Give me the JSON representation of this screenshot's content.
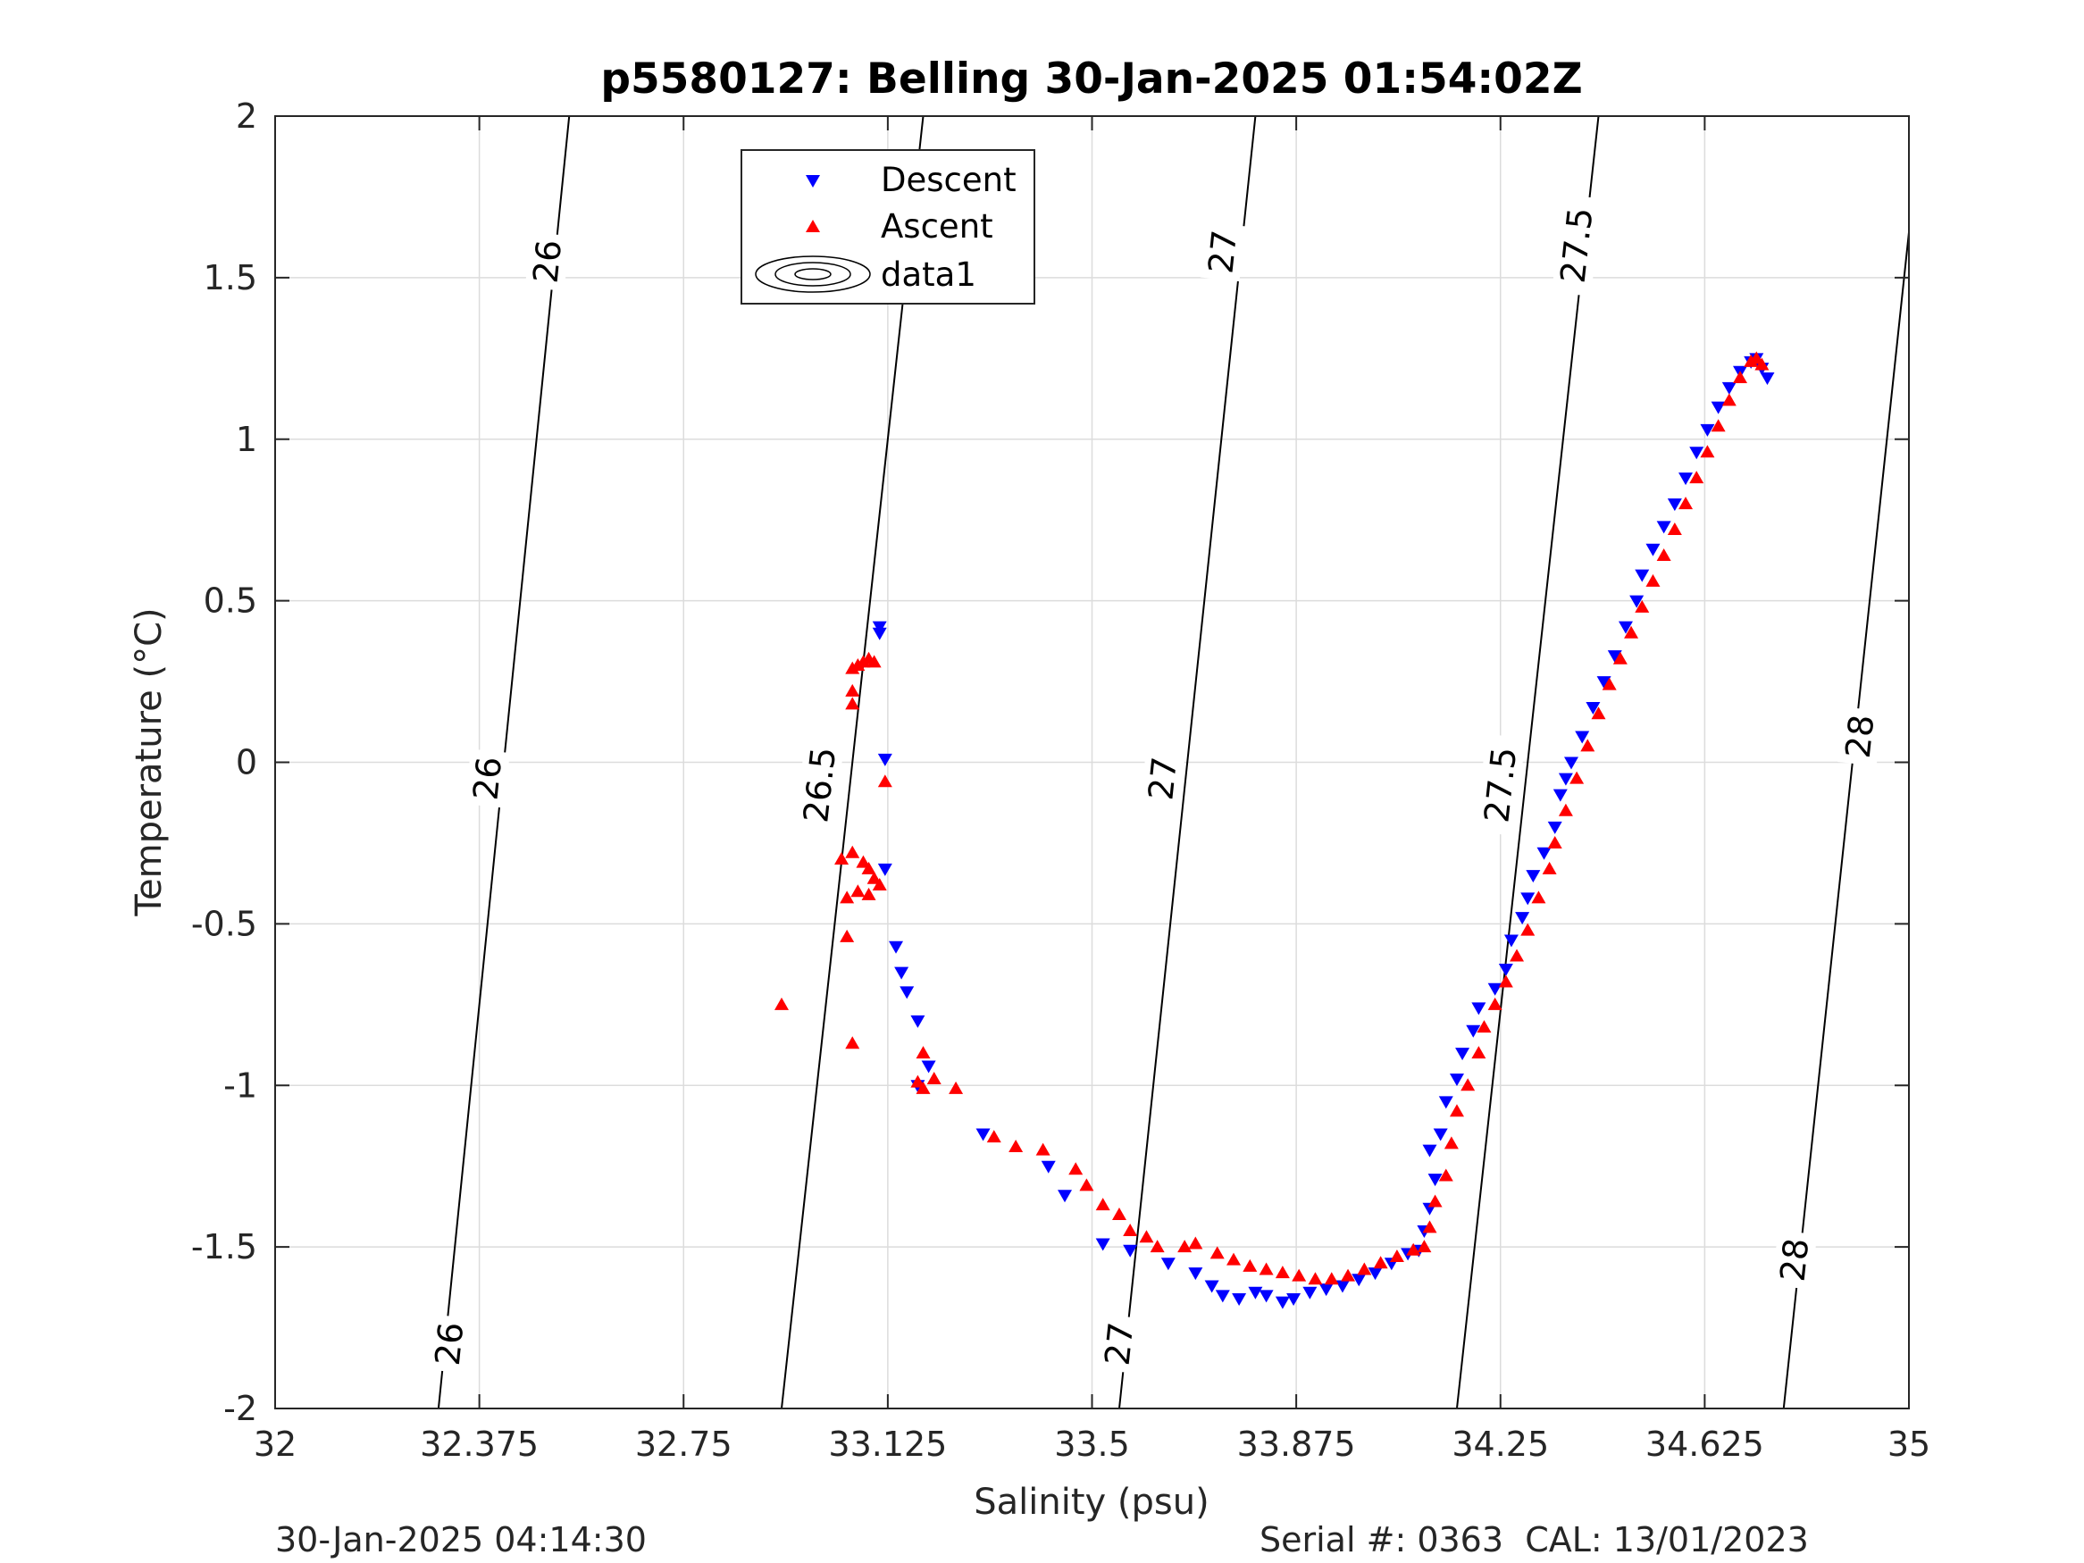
{
  "figure": {
    "footer_left": "30-Jan-2025 04:14:30",
    "footer_right": "Serial #: 0363  CAL: 13/01/2023"
  },
  "chart_data": {
    "type": "scatter",
    "title": "p5580127: Belling 30-Jan-2025 01:54:02Z",
    "xlabel": "Salinity (psu)",
    "ylabel": "Temperature (°C)",
    "xlim": [
      32,
      35
    ],
    "ylim": [
      -2,
      2
    ],
    "x_ticks": [
      "32",
      "32.375",
      "32.75",
      "33.125",
      "33.5",
      "33.875",
      "34.25",
      "34.625",
      "35"
    ],
    "y_ticks": [
      "-2",
      "-1.5",
      "-1",
      "-0.5",
      "0",
      "0.5",
      "1",
      "1.5",
      "2"
    ],
    "grid": true,
    "legend_position": "top-left",
    "legend": [
      "Descent",
      "Ascent",
      "data1"
    ],
    "series": [
      {
        "name": "Descent",
        "color": "#0000ff",
        "marker": "triangle-down",
        "points": [
          [
            33.11,
            0.42
          ],
          [
            33.11,
            0.4
          ],
          [
            33.12,
            0.01
          ],
          [
            33.12,
            -0.33
          ],
          [
            33.14,
            -0.57
          ],
          [
            33.15,
            -0.65
          ],
          [
            33.16,
            -0.71
          ],
          [
            33.18,
            -0.8
          ],
          [
            33.2,
            -0.94
          ],
          [
            33.18,
            -1.0
          ],
          [
            33.3,
            -1.15
          ],
          [
            33.42,
            -1.25
          ],
          [
            33.45,
            -1.34
          ],
          [
            33.52,
            -1.49
          ],
          [
            33.57,
            -1.51
          ],
          [
            33.64,
            -1.55
          ],
          [
            33.69,
            -1.58
          ],
          [
            33.72,
            -1.62
          ],
          [
            33.74,
            -1.65
          ],
          [
            33.77,
            -1.66
          ],
          [
            33.8,
            -1.64
          ],
          [
            33.82,
            -1.65
          ],
          [
            33.85,
            -1.67
          ],
          [
            33.87,
            -1.66
          ],
          [
            33.9,
            -1.64
          ],
          [
            33.93,
            -1.63
          ],
          [
            33.96,
            -1.62
          ],
          [
            33.99,
            -1.6
          ],
          [
            34.02,
            -1.58
          ],
          [
            34.05,
            -1.55
          ],
          [
            34.08,
            -1.52
          ],
          [
            34.1,
            -1.51
          ],
          [
            34.11,
            -1.45
          ],
          [
            34.12,
            -1.38
          ],
          [
            34.13,
            -1.29
          ],
          [
            34.12,
            -1.2
          ],
          [
            34.14,
            -1.15
          ],
          [
            34.15,
            -1.05
          ],
          [
            34.17,
            -0.98
          ],
          [
            34.18,
            -0.9
          ],
          [
            34.2,
            -0.83
          ],
          [
            34.21,
            -0.76
          ],
          [
            34.24,
            -0.7
          ],
          [
            34.26,
            -0.64
          ],
          [
            34.27,
            -0.55
          ],
          [
            34.29,
            -0.48
          ],
          [
            34.3,
            -0.42
          ],
          [
            34.31,
            -0.35
          ],
          [
            34.33,
            -0.28
          ],
          [
            34.35,
            -0.2
          ],
          [
            34.36,
            -0.1
          ],
          [
            34.37,
            -0.05
          ],
          [
            34.38,
            0.0
          ],
          [
            34.4,
            0.08
          ],
          [
            34.42,
            0.17
          ],
          [
            34.44,
            0.25
          ],
          [
            34.46,
            0.33
          ],
          [
            34.48,
            0.42
          ],
          [
            34.5,
            0.5
          ],
          [
            34.51,
            0.58
          ],
          [
            34.53,
            0.66
          ],
          [
            34.55,
            0.73
          ],
          [
            34.57,
            0.8
          ],
          [
            34.59,
            0.88
          ],
          [
            34.61,
            0.96
          ],
          [
            34.63,
            1.03
          ],
          [
            34.65,
            1.1
          ],
          [
            34.67,
            1.16
          ],
          [
            34.69,
            1.21
          ],
          [
            34.71,
            1.24
          ],
          [
            34.72,
            1.25
          ],
          [
            34.73,
            1.22
          ],
          [
            34.74,
            1.19
          ]
        ]
      },
      {
        "name": "Ascent",
        "color": "#ff0000",
        "marker": "triangle-up",
        "points": [
          [
            33.06,
            0.29
          ],
          [
            33.07,
            0.3
          ],
          [
            33.08,
            0.31
          ],
          [
            33.09,
            0.32
          ],
          [
            33.1,
            0.31
          ],
          [
            33.06,
            0.22
          ],
          [
            33.06,
            0.18
          ],
          [
            33.12,
            -0.06
          ],
          [
            33.04,
            -0.3
          ],
          [
            33.06,
            -0.28
          ],
          [
            33.08,
            -0.31
          ],
          [
            33.09,
            -0.33
          ],
          [
            33.1,
            -0.36
          ],
          [
            33.11,
            -0.38
          ],
          [
            33.07,
            -0.4
          ],
          [
            33.09,
            -0.41
          ],
          [
            33.05,
            -0.42
          ],
          [
            33.05,
            -0.54
          ],
          [
            32.93,
            -0.75
          ],
          [
            33.06,
            -0.87
          ],
          [
            33.19,
            -0.9
          ],
          [
            33.18,
            -0.99
          ],
          [
            33.19,
            -1.01
          ],
          [
            33.21,
            -0.98
          ],
          [
            33.25,
            -1.01
          ],
          [
            33.32,
            -1.16
          ],
          [
            33.36,
            -1.19
          ],
          [
            33.41,
            -1.2
          ],
          [
            33.47,
            -1.26
          ],
          [
            33.49,
            -1.31
          ],
          [
            33.52,
            -1.37
          ],
          [
            33.55,
            -1.4
          ],
          [
            33.57,
            -1.45
          ],
          [
            33.6,
            -1.47
          ],
          [
            33.62,
            -1.5
          ],
          [
            33.67,
            -1.5
          ],
          [
            33.69,
            -1.49
          ],
          [
            33.73,
            -1.52
          ],
          [
            33.76,
            -1.54
          ],
          [
            33.79,
            -1.56
          ],
          [
            33.82,
            -1.57
          ],
          [
            33.85,
            -1.58
          ],
          [
            33.88,
            -1.59
          ],
          [
            33.91,
            -1.6
          ],
          [
            33.94,
            -1.6
          ],
          [
            33.97,
            -1.59
          ],
          [
            34.0,
            -1.57
          ],
          [
            34.03,
            -1.55
          ],
          [
            34.06,
            -1.53
          ],
          [
            34.09,
            -1.51
          ],
          [
            34.11,
            -1.5
          ],
          [
            34.12,
            -1.44
          ],
          [
            34.13,
            -1.36
          ],
          [
            34.15,
            -1.28
          ],
          [
            34.16,
            -1.18
          ],
          [
            34.17,
            -1.08
          ],
          [
            34.19,
            -1.0
          ],
          [
            34.21,
            -0.9
          ],
          [
            34.22,
            -0.82
          ],
          [
            34.24,
            -0.75
          ],
          [
            34.26,
            -0.68
          ],
          [
            34.28,
            -0.6
          ],
          [
            34.3,
            -0.52
          ],
          [
            34.32,
            -0.42
          ],
          [
            34.34,
            -0.33
          ],
          [
            34.35,
            -0.25
          ],
          [
            34.37,
            -0.15
          ],
          [
            34.39,
            -0.05
          ],
          [
            34.41,
            0.05
          ],
          [
            34.43,
            0.15
          ],
          [
            34.45,
            0.24
          ],
          [
            34.47,
            0.32
          ],
          [
            34.49,
            0.4
          ],
          [
            34.51,
            0.48
          ],
          [
            34.53,
            0.56
          ],
          [
            34.55,
            0.64
          ],
          [
            34.57,
            0.72
          ],
          [
            34.59,
            0.8
          ],
          [
            34.61,
            0.88
          ],
          [
            34.63,
            0.96
          ],
          [
            34.65,
            1.04
          ],
          [
            34.67,
            1.12
          ],
          [
            34.69,
            1.19
          ],
          [
            34.71,
            1.24
          ],
          [
            34.72,
            1.25
          ],
          [
            34.73,
            1.23
          ]
        ]
      }
    ],
    "isopycnal_labels": [
      "26",
      "26.5",
      "27",
      "27.5",
      "28"
    ],
    "isopycnals": [
      {
        "label": "26",
        "line": [
          [
            32.3,
            -2
          ],
          [
            32.54,
            2
          ]
        ],
        "label_at": [
          [
            32.32,
            -1.8
          ],
          [
            32.39,
            -0.05
          ],
          [
            32.5,
            1.55
          ]
        ]
      },
      {
        "label": "26.5",
        "line": [
          [
            32.93,
            -2
          ],
          [
            33.19,
            2
          ]
        ],
        "label_at": [
          [
            33.0,
            -0.07
          ],
          [
            33.11,
            1.6
          ]
        ]
      },
      {
        "label": "27",
        "line": [
          [
            33.55,
            -2
          ],
          [
            33.8,
            2
          ]
        ],
        "label_at": [
          [
            33.55,
            -1.8
          ],
          [
            33.63,
            -0.05
          ],
          [
            33.74,
            1.58
          ]
        ]
      },
      {
        "label": "27.5",
        "line": [
          [
            34.17,
            -2
          ],
          [
            34.43,
            2
          ]
        ],
        "label_at": [
          [
            34.25,
            -0.07
          ],
          [
            34.39,
            1.6
          ]
        ]
      },
      {
        "label": "28",
        "line": [
          [
            34.77,
            -2
          ],
          [
            35.0,
            1.64
          ]
        ],
        "label_at": [
          [
            34.79,
            -1.54
          ],
          [
            34.91,
            0.08
          ]
        ]
      }
    ]
  }
}
